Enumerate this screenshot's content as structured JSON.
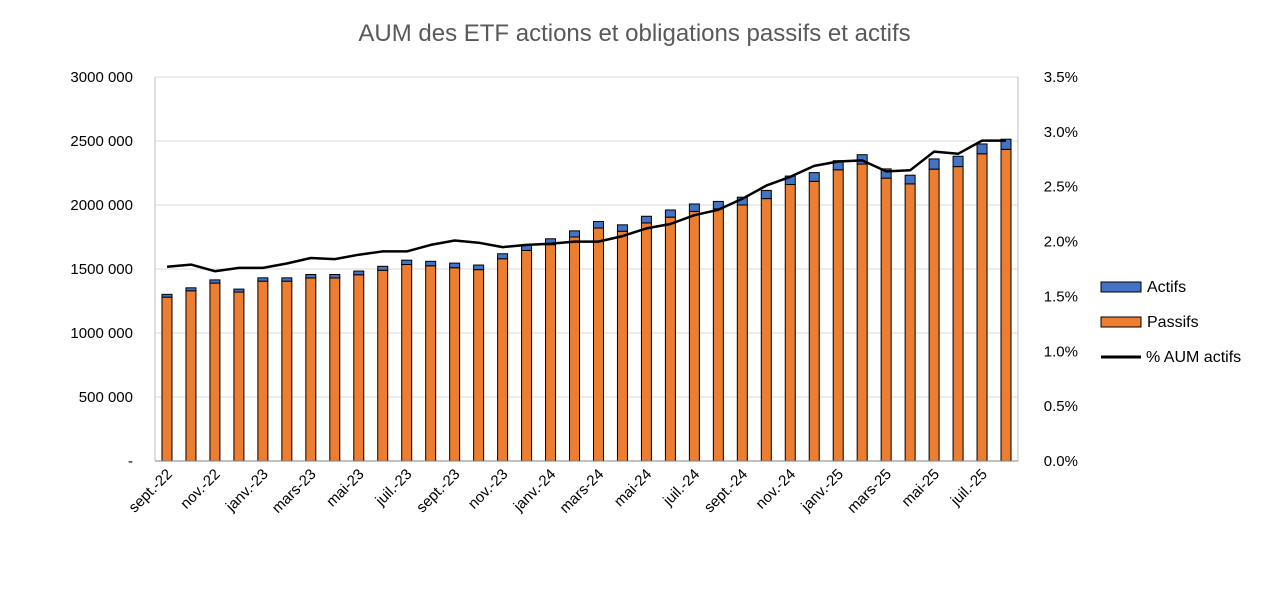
{
  "chart_data": {
    "type": "bar",
    "title": "AUM des ETF actions et obligations passifs et actifs",
    "categories": [
      "sept.-22",
      "oct.-22",
      "nov.-22",
      "déc.-22",
      "janv.-23",
      "févr.-23",
      "mars-23",
      "avr.-23",
      "mai-23",
      "juin-23",
      "juil.-23",
      "août-23",
      "sept.-23",
      "oct.-23",
      "nov.-23",
      "déc.-23",
      "janv.-24",
      "févr.-24",
      "mars-24",
      "avr.-24",
      "mai-24",
      "juin-24",
      "juil.-24",
      "août-24",
      "sept.-24",
      "oct.-24",
      "nov.-24",
      "déc.-24",
      "janv.-25",
      "févr.-25",
      "mars-25",
      "avr.-25",
      "mai-25",
      "juin-25",
      "juil.-25",
      "août-25"
    ],
    "x_tick_labels": [
      "sept.-22",
      "nov.-22",
      "janv.-23",
      "mars-23",
      "mai-23",
      "juil.-23",
      "sept.-23",
      "nov.-23",
      "janv.-24",
      "mars-24",
      "mai-24",
      "juil.-24",
      "sept.-24",
      "nov.-24",
      "janv.-25",
      "mars-25",
      "mai-25",
      "juil.-25"
    ],
    "series": [
      {
        "name": "Passifs",
        "kind": "stacked-bar",
        "axis": "left",
        "color": "#ED7D31",
        "values": [
          1280000,
          1330000,
          1390000,
          1320000,
          1405000,
          1405000,
          1430000,
          1430000,
          1455000,
          1490000,
          1535000,
          1525000,
          1510000,
          1495000,
          1580000,
          1645000,
          1690000,
          1750000,
          1820000,
          1795000,
          1860000,
          1905000,
          1950000,
          1970000,
          2000000,
          2050000,
          2160000,
          2185000,
          2275000,
          2320000,
          2210000,
          2165000,
          2280000,
          2300000,
          2400000,
          2435000
        ]
      },
      {
        "name": "Actifs",
        "kind": "stacked-bar",
        "axis": "left",
        "color": "#4472C4",
        "values": [
          22000,
          23000,
          25000,
          23000,
          26000,
          26000,
          27000,
          27000,
          29000,
          31000,
          34000,
          35000,
          36000,
          36000,
          39000,
          44000,
          46000,
          48000,
          51000,
          50000,
          52000,
          56000,
          58000,
          58000,
          61000,
          64000,
          66000,
          68000,
          71000,
          73000,
          72000,
          68000,
          80000,
          81000,
          77000,
          79000
        ]
      },
      {
        "name": "% AUM actifs",
        "kind": "line",
        "axis": "right",
        "color": "#000000",
        "values": [
          1.77,
          1.79,
          1.73,
          1.76,
          1.76,
          1.8,
          1.85,
          1.84,
          1.88,
          1.91,
          1.91,
          1.97,
          2.01,
          1.99,
          1.95,
          1.97,
          1.98,
          2.0,
          2.0,
          2.05,
          2.12,
          2.16,
          2.24,
          2.29,
          2.39,
          2.51,
          2.59,
          2.69,
          2.73,
          2.74,
          2.64,
          2.65,
          2.82,
          2.8,
          2.92,
          2.92
        ]
      }
    ],
    "y_left": {
      "range": [
        0,
        3000000
      ],
      "ticks": [
        0,
        500000,
        1000000,
        1500000,
        2000000,
        2500000,
        3000000
      ],
      "tick_labels": [
        "-",
        "500 000",
        "1000 000",
        "1500 000",
        "2000 000",
        "2500 000",
        "3000 000"
      ]
    },
    "y_right": {
      "range": [
        0,
        3.5
      ],
      "tick_labels": [
        "0.0%",
        "0.5%",
        "1.0%",
        "1.5%",
        "2.0%",
        "2.5%",
        "3.0%",
        "3.5%"
      ]
    },
    "grid": true,
    "legend": {
      "position": "right",
      "items": [
        "Actifs",
        "Passifs",
        "% AUM actifs"
      ]
    }
  }
}
